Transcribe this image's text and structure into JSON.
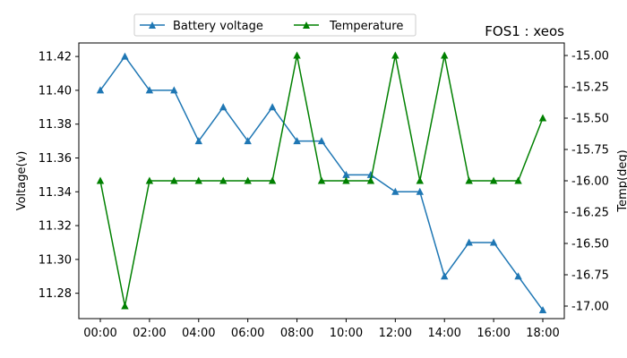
{
  "chart_data": {
    "type": "line",
    "title": "FOS1 : xeos",
    "x": [
      "00:00",
      "01:00",
      "02:00",
      "03:00",
      "04:00",
      "05:00",
      "06:00",
      "07:00",
      "08:00",
      "09:00",
      "10:00",
      "11:00",
      "12:00",
      "13:00",
      "14:00",
      "15:00",
      "16:00",
      "17:00",
      "18:00"
    ],
    "xticks": [
      "00:00",
      "02:00",
      "04:00",
      "06:00",
      "08:00",
      "10:00",
      "12:00",
      "14:00",
      "16:00",
      "18:00"
    ],
    "ylabel": "Voltage(v)",
    "y2label": "Temp(deg)",
    "ylim": [
      11.265,
      11.428
    ],
    "y2lim": [
      -17.1,
      -14.9
    ],
    "yticks": [
      "11.28",
      "11.30",
      "11.32",
      "11.34",
      "11.36",
      "11.38",
      "11.40",
      "11.42"
    ],
    "y2ticks": [
      "-17.00",
      "-16.75",
      "-16.50",
      "-16.25",
      "-16.00",
      "-15.75",
      "-15.50",
      "-15.25",
      "-15.00"
    ],
    "legend_position": "top-center",
    "grid": false,
    "series": [
      {
        "name": "Battery voltage",
        "axis": "left",
        "color": "#1f77b4",
        "values": [
          11.4,
          11.42,
          11.4,
          11.4,
          11.37,
          11.39,
          11.37,
          11.39,
          11.37,
          11.37,
          11.35,
          11.35,
          11.34,
          11.34,
          11.29,
          11.31,
          11.31,
          11.29,
          11.27
        ]
      },
      {
        "name": "Temperature",
        "axis": "right",
        "color": "#008000",
        "values": [
          -16.0,
          -17.0,
          -16.0,
          -16.0,
          -16.0,
          -16.0,
          -16.0,
          -16.0,
          -15.0,
          -16.0,
          -16.0,
          -16.0,
          -15.0,
          -16.0,
          -15.0,
          -16.0,
          -16.0,
          -16.0,
          -15.5
        ]
      }
    ]
  }
}
